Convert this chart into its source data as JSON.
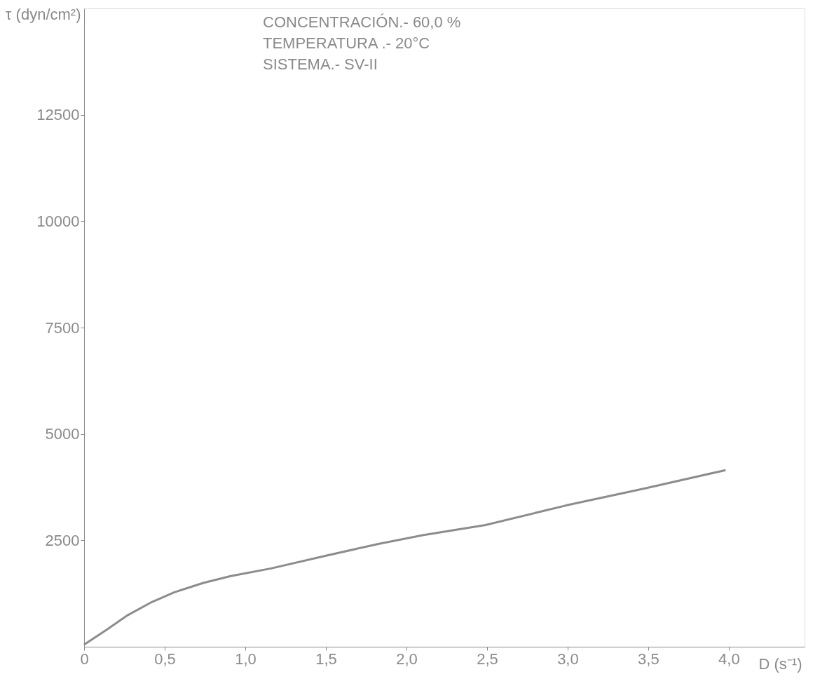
{
  "chart_data": {
    "type": "line",
    "xlabel": "D (s⁻¹)",
    "ylabel": "τ (dyn/cm²)",
    "annotations": [
      "CONCENTRACIÓN.-  60,0 %",
      "TEMPERATURA .-     20°C",
      "SISTEMA.- SV-II"
    ],
    "xlim": [
      0,
      4.47
    ],
    "ylim": [
      0,
      15000
    ],
    "xticks": [
      0,
      {
        "value": 0.5,
        "label": "0,5"
      },
      {
        "value": 1.0,
        "label": "1,0"
      },
      {
        "value": 1.5,
        "label": "1,5"
      },
      {
        "value": 2.0,
        "label": "2,0"
      },
      {
        "value": 2.5,
        "label": "2,5"
      },
      {
        "value": 3.0,
        "label": "3,0"
      },
      {
        "value": 3.5,
        "label": "3,5"
      },
      {
        "value": 4.0,
        "label": "4,0"
      }
    ],
    "yticks": [
      2500,
      5000,
      7500,
      10000,
      12500
    ],
    "grid": false,
    "marker": "none",
    "line_style": "solid",
    "series": [
      {
        "color": "#8c8c8c",
        "x": [
          0,
          0.14,
          0.27,
          0.42,
          0.56,
          0.74,
          0.91,
          1.16,
          1.5,
          1.83,
          2.1,
          2.49,
          2.99,
          3.48,
          3.98
        ],
        "values": [
          50,
          400,
          740,
          1050,
          1280,
          1500,
          1660,
          1840,
          2140,
          2420,
          2620,
          2860,
          3320,
          3720,
          4150
        ]
      }
    ]
  }
}
